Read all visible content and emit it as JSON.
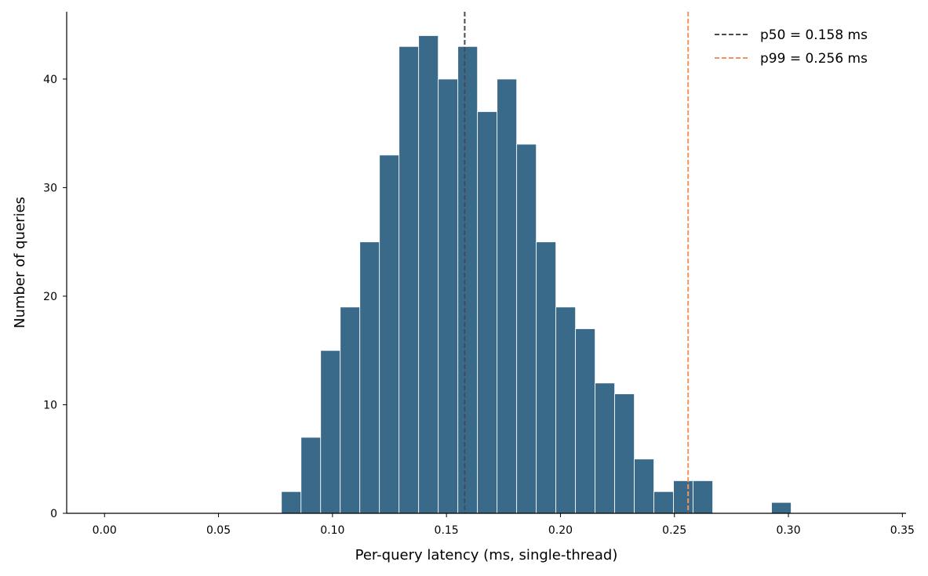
{
  "chart_data": {
    "type": "bar",
    "subtype": "histogram",
    "xlabel": "Per-query latency (ms, single-thread)",
    "ylabel": "Number of queries",
    "xlim": [
      -0.0166,
      0.3516
    ],
    "ylim": [
      0,
      46.2
    ],
    "xticks": [
      0.0,
      0.05,
      0.1,
      0.15,
      0.2,
      0.25,
      0.3,
      0.35
    ],
    "xtick_labels": [
      "0.00",
      "0.05",
      "0.10",
      "0.15",
      "0.20",
      "0.25",
      "0.30",
      "0.35"
    ],
    "yticks": [
      0,
      10,
      20,
      30,
      40
    ],
    "ytick_labels": [
      "0",
      "10",
      "20",
      "30",
      "40"
    ],
    "bin_edges": [
      0.0776,
      0.0862,
      0.0948,
      0.1034,
      0.112,
      0.1206,
      0.1292,
      0.1378,
      0.1464,
      0.155,
      0.1636,
      0.1722,
      0.1808,
      0.1894,
      0.198,
      0.2066,
      0.2152,
      0.2238,
      0.2324,
      0.241,
      0.2496,
      0.2582,
      0.2668,
      0.2754,
      0.284,
      0.2926,
      0.3012
    ],
    "counts": [
      2,
      7,
      15,
      19,
      25,
      33,
      43,
      44,
      40,
      43,
      37,
      40,
      34,
      25,
      19,
      17,
      12,
      11,
      5,
      2,
      3,
      3,
      0,
      0,
      0,
      1
    ],
    "bar_color": "#3a6a8a",
    "reference_lines": [
      {
        "label": "p50 = 0.158 ms",
        "x": 0.158,
        "color": "#444b55",
        "style": "dashed"
      },
      {
        "label": "p99 = 0.256 ms",
        "x": 0.256,
        "color": "#f4925c",
        "style": "dashed"
      }
    ],
    "legend_placement": "top-right",
    "grid": false
  }
}
